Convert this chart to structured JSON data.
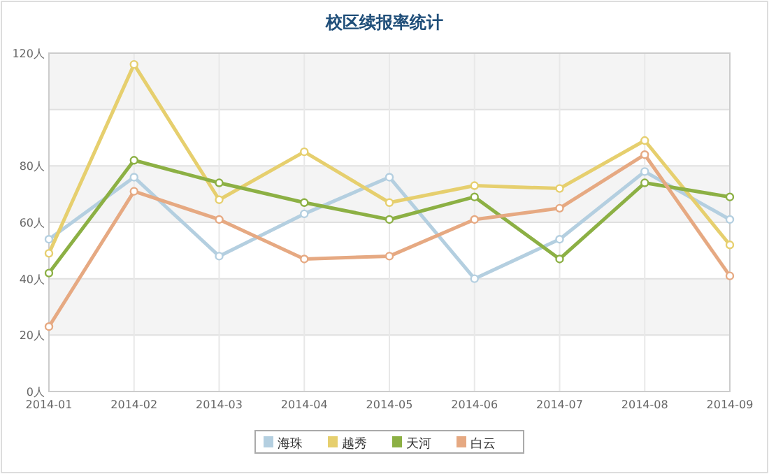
{
  "chart_data": {
    "type": "line",
    "title": "校区续报率统计",
    "categories": [
      "2014-01",
      "2014-02",
      "2014-03",
      "2014-04",
      "2014-05",
      "2014-06",
      "2014-07",
      "2014-08",
      "2014-09"
    ],
    "series": [
      {
        "name": "海珠",
        "color": "#b4cfe0",
        "values": [
          54,
          76,
          48,
          63,
          76,
          40,
          54,
          78,
          61
        ]
      },
      {
        "name": "越秀",
        "color": "#e6cf6e",
        "values": [
          49,
          116,
          68,
          85,
          67,
          73,
          72,
          89,
          52
        ]
      },
      {
        "name": "天河",
        "color": "#8cb044",
        "values": [
          42,
          82,
          74,
          67,
          61,
          69,
          47,
          74,
          69
        ]
      },
      {
        "name": "白云",
        "color": "#e6a982",
        "values": [
          23,
          71,
          61,
          47,
          48,
          61,
          65,
          84,
          41
        ]
      }
    ],
    "ylim": [
      0,
      120
    ],
    "yticks": [
      {
        "value": 0,
        "label": "0人"
      },
      {
        "value": 20,
        "label": "20人"
      },
      {
        "value": 40,
        "label": "40人"
      },
      {
        "value": 60,
        "label": "60人"
      },
      {
        "value": 80,
        "label": "80人"
      },
      {
        "value": 100,
        "label": null
      },
      {
        "value": 120,
        "label": "120人"
      }
    ],
    "grid": true,
    "legend": "bottom",
    "marker": "circle",
    "line_style": "solid"
  }
}
